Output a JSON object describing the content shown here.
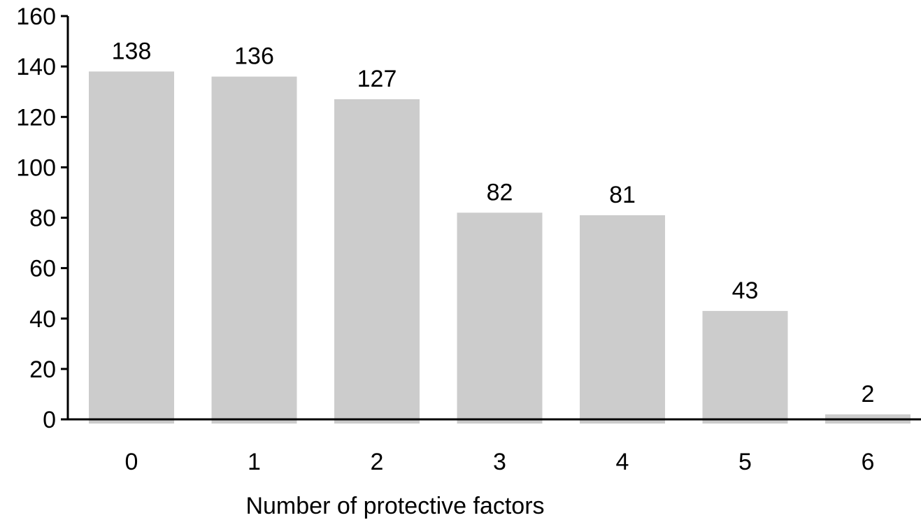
{
  "chart_data": {
    "type": "bar",
    "title": "",
    "xlabel": "Number of protective factors",
    "ylabel": "",
    "categories": [
      "0",
      "1",
      "2",
      "3",
      "4",
      "5",
      "6"
    ],
    "values": [
      138,
      136,
      127,
      82,
      81,
      43,
      2
    ],
    "data_labels": [
      "138",
      "136",
      "127",
      "82",
      "81",
      "43",
      "2"
    ],
    "ylim": [
      0,
      160
    ],
    "yticks": [
      0,
      20,
      40,
      60,
      80,
      100,
      120,
      140,
      160
    ],
    "ytick_labels": [
      "0",
      "20",
      "40",
      "60",
      "80",
      "100",
      "120",
      "140",
      "160"
    ],
    "grid": false,
    "legend": "none",
    "colors": {
      "bar": "#cccccc",
      "axis": "#000000",
      "text": "#000000"
    }
  }
}
